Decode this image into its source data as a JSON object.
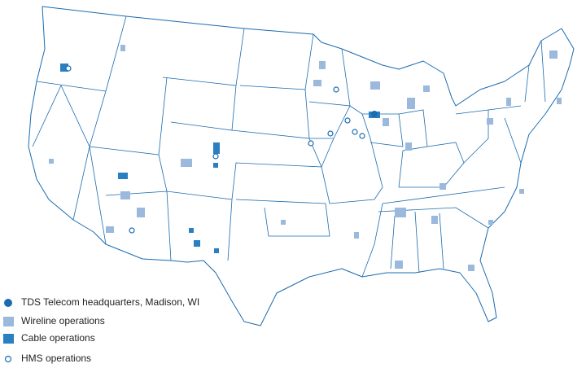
{
  "legend": [
    {
      "label": "TDS Telecom headquarters, Madison, WI"
    },
    {
      "label": "Wireline operations"
    },
    {
      "label": "Cable operations"
    },
    {
      "label": "HMS operations"
    }
  ]
}
